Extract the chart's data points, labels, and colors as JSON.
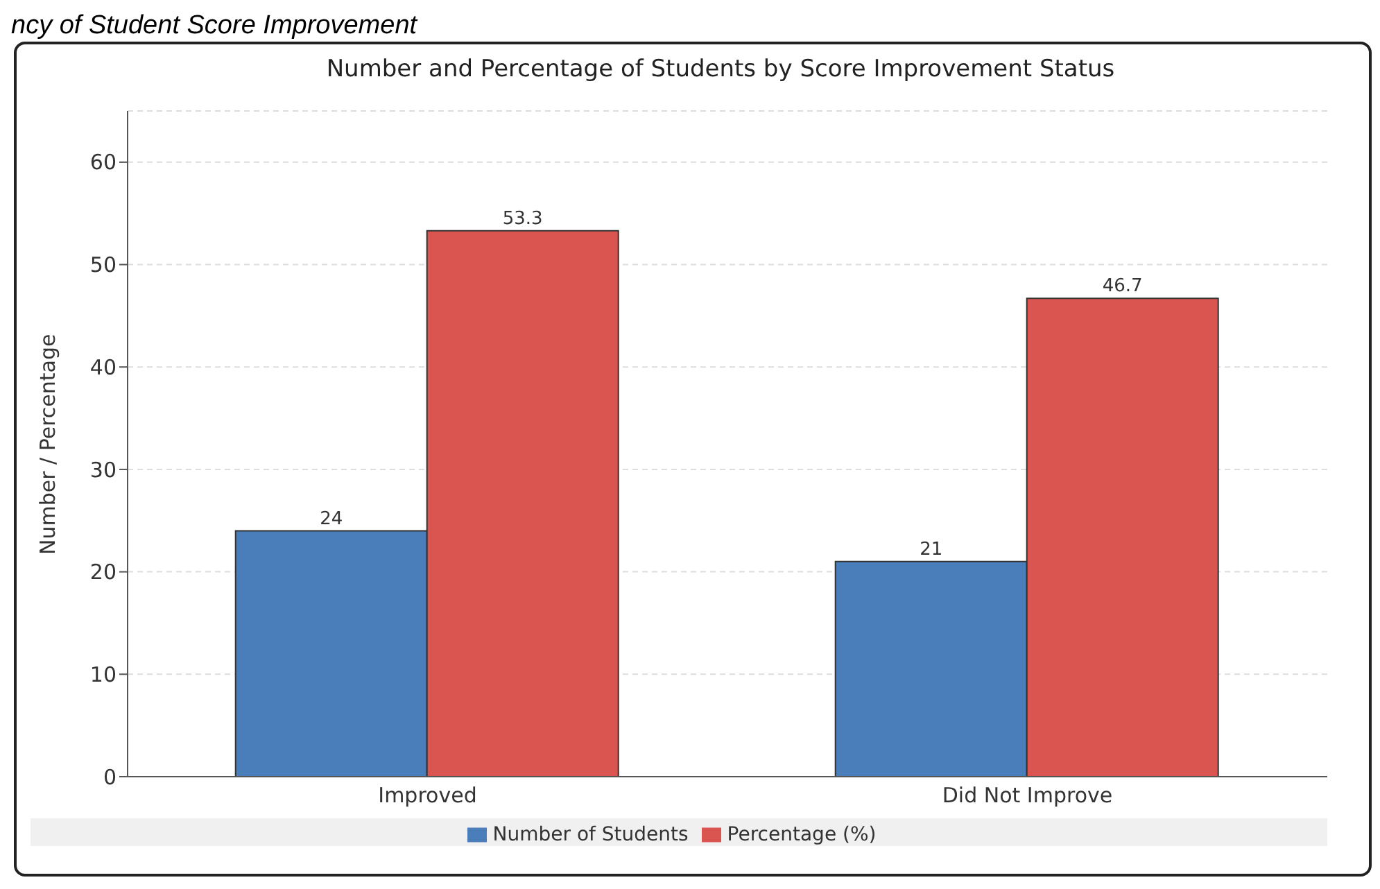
{
  "chart_data": {
    "type": "bar",
    "title": "Number and Percentage of Students by Score Improvement Status",
    "annotations": [
      "ncy of Student Score Improvement"
    ],
    "ylabel": "Number / Percentage",
    "categories": [
      "Improved",
      "Did Not Improve"
    ],
    "series": [
      {
        "name": "Number of Students",
        "color": "#4a7ebb",
        "values": [
          24,
          21
        ]
      },
      {
        "name": "Percentage (%)",
        "color": "#da5450",
        "values": [
          53.3,
          46.7
        ]
      }
    ],
    "ylim": [
      0,
      65
    ],
    "yticks": [
      0,
      10,
      20,
      30,
      40,
      50,
      60
    ],
    "grid": "y",
    "legend": "bottom",
    "data_labels": true
  }
}
